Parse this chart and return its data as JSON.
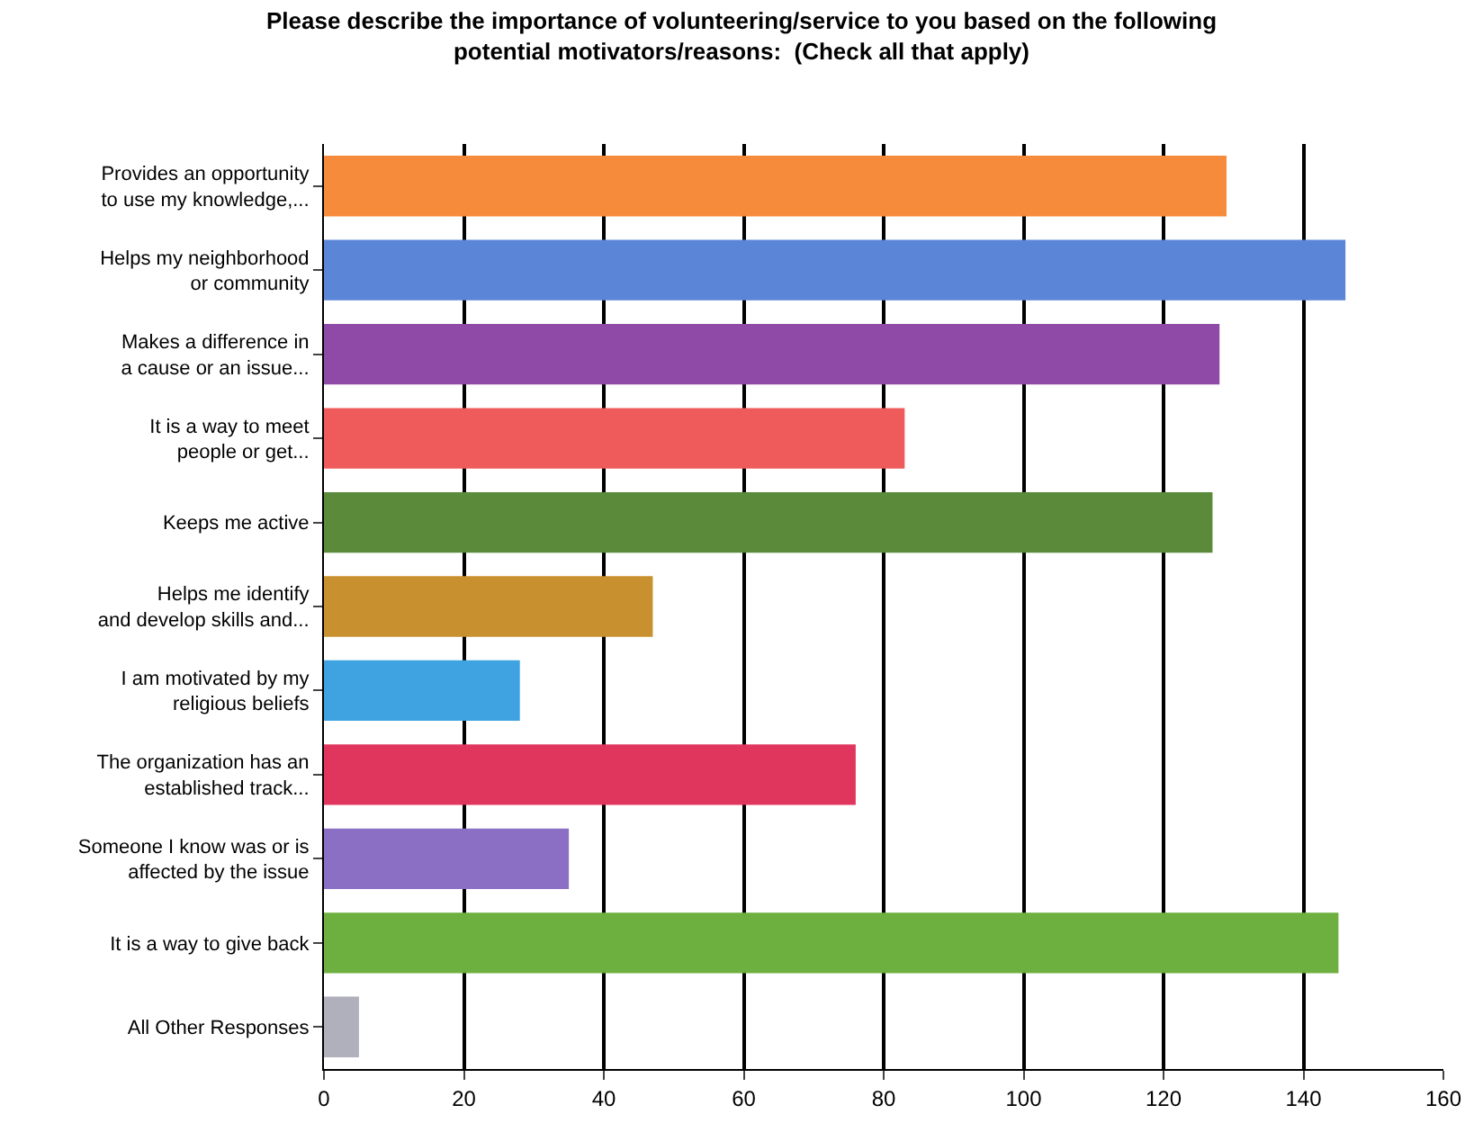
{
  "chart_data": {
    "type": "bar",
    "orientation": "horizontal",
    "title": "Please describe the importance of volunteering/service to you based on the following potential motivators/reasons:  (Check all that apply)",
    "categories": [
      "Provides an opportunity\nto use my knowledge,...",
      "Helps my neighborhood\nor community",
      "Makes a difference in\na cause or an issue...",
      "It is a way to meet\npeople or get...",
      "Keeps me active",
      "Helps me identify\nand develop skills and...",
      "I am motivated by my\nreligious beliefs",
      "The organization has an\nestablished track...",
      "Someone I know was or is\naffected by the issue",
      "It is a way to give back",
      "All Other Responses"
    ],
    "values": [
      129,
      146,
      128,
      83,
      127,
      47,
      28,
      76,
      35,
      145,
      5
    ],
    "colors": [
      "#f68b3c",
      "#5b86d8",
      "#8e4aa6",
      "#ef5b5b",
      "#5a8a3a",
      "#c8902e",
      "#3ea3e0",
      "#e0365e",
      "#8b6fc4",
      "#6eb03f",
      "#b0b0bc"
    ],
    "xlim": [
      0,
      160
    ],
    "xticks": [
      0,
      20,
      40,
      60,
      80,
      100,
      120,
      140,
      160
    ],
    "grid": "x"
  }
}
